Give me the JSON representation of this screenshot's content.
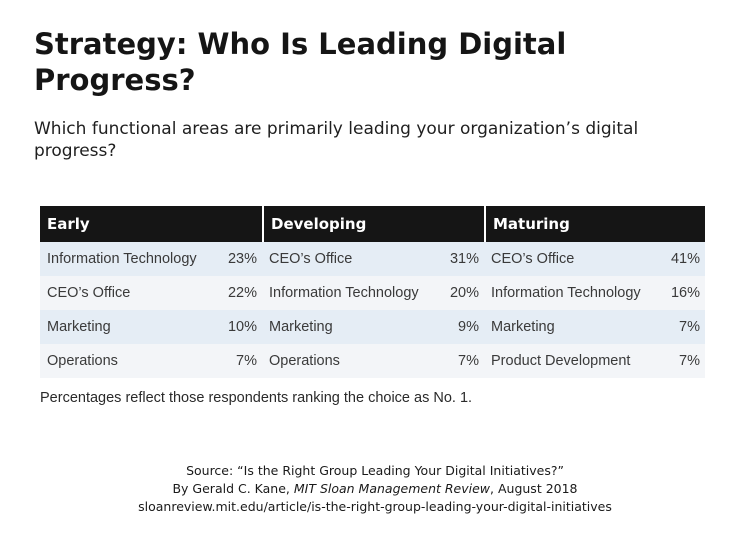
{
  "title": "Strategy: Who Is Leading Digital Progress?",
  "subtitle": "Which functional areas are primarily leading your organization’s digital progress?",
  "chart_data": {
    "type": "table",
    "columns": [
      {
        "name": "Early",
        "rows": [
          {
            "label": "Information Technology",
            "value": "23%"
          },
          {
            "label": "CEO’s Office",
            "value": "22%"
          },
          {
            "label": "Marketing",
            "value": "10%"
          },
          {
            "label": "Operations",
            "value": "7%"
          }
        ]
      },
      {
        "name": "Developing",
        "rows": [
          {
            "label": "CEO’s Office",
            "value": "31%"
          },
          {
            "label": "Information Technology",
            "value": "20%"
          },
          {
            "label": "Marketing",
            "value": "9%"
          },
          {
            "label": "Operations",
            "value": "7%"
          }
        ]
      },
      {
        "name": "Maturing",
        "rows": [
          {
            "label": "CEO’s Office",
            "value": "41%"
          },
          {
            "label": "Information Technology",
            "value": "16%"
          },
          {
            "label": "Marketing",
            "value": "7%"
          },
          {
            "label": "Product Development",
            "value": "7%"
          }
        ]
      }
    ],
    "note": "Percentages reflect those respondents ranking the choice as No. 1."
  },
  "source": {
    "line1": "Source: “Is the Right Group Leading Your Digital Initiatives?”",
    "byline_prefix": "By Gerald C. Kane, ",
    "publication": "MIT Sloan Management Review",
    "byline_suffix": ", August 2018",
    "url": "sloanreview.mit.edu/article/is-the-right-group-leading-your-digital-initiatives"
  },
  "colors": {
    "header_bg": "#151515",
    "row_odd": "#e5edf5",
    "row_even": "#f3f5f8"
  }
}
